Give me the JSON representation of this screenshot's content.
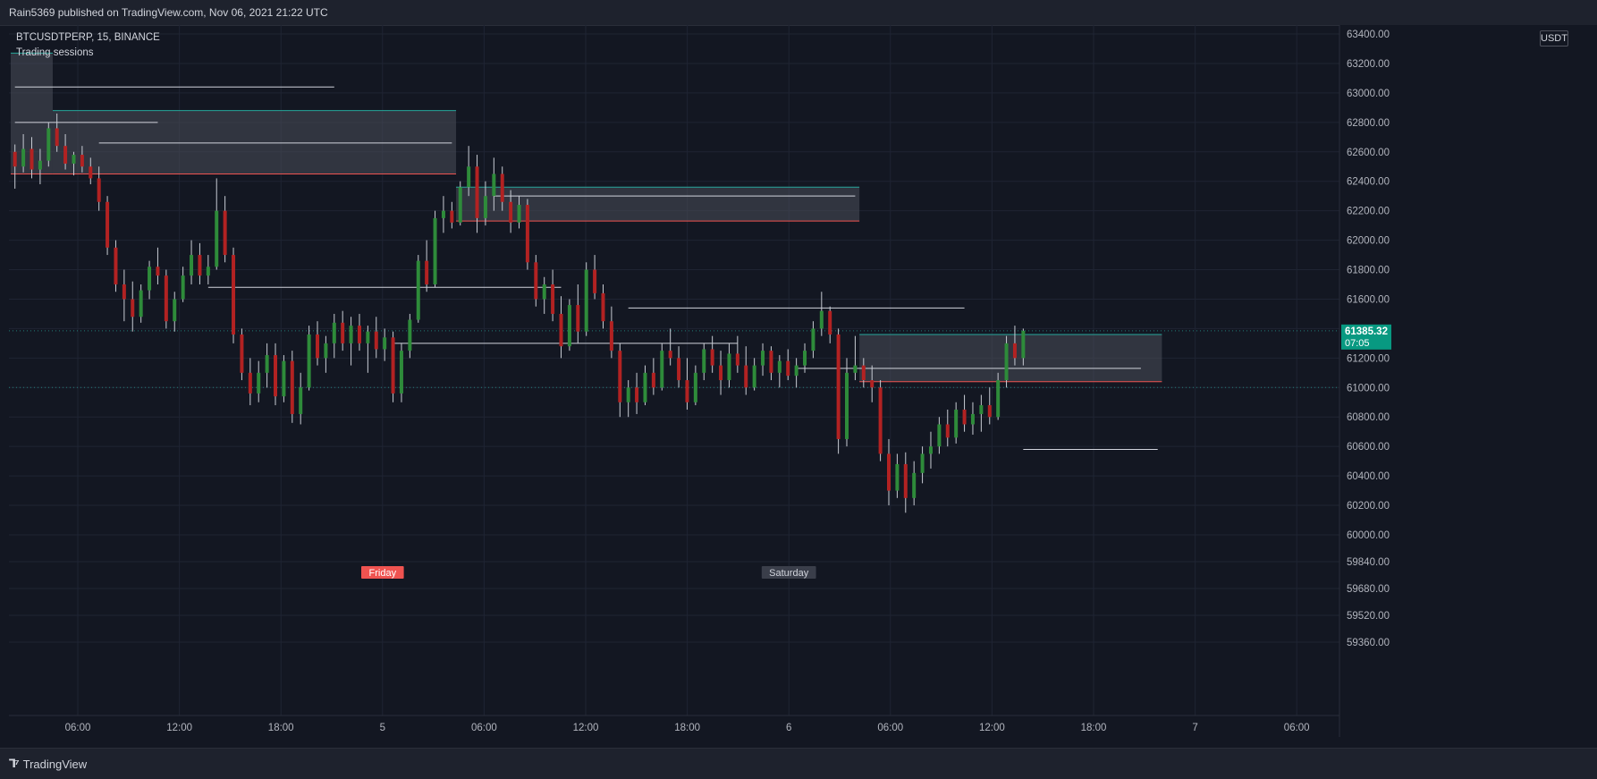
{
  "header": {
    "published_text": "Rain5369 published on TradingView.com, Nov 06, 2021 21:22 UTC"
  },
  "legend": {
    "symbol_line": "BTCUSDTPERP, 15, BINANCE",
    "indicator": "Trading sessions"
  },
  "price_axis": {
    "currency": "USDT",
    "last_price": "61385.32",
    "countdown": "07:05",
    "last_price_color": "#089981"
  },
  "footer": {
    "brand": "TradingView",
    "brand_icon": "tradingview-logo-icon"
  },
  "colors": {
    "background": "#131722",
    "up": "#26a69a",
    "down": "#ef5350",
    "session_box": "#4a4e5a",
    "session_high": "#26a69a",
    "session_low": "#ef5350",
    "level_line": "#d1d4dc"
  },
  "chart_data": {
    "type": "candlestick",
    "symbol": "BTCUSDTPERP",
    "interval": "15",
    "exchange": "BINANCE",
    "y_ticks": [
      63400,
      63200,
      63000,
      62800,
      62600,
      62400,
      62200,
      62000,
      61800,
      61600,
      61400,
      61200,
      61000,
      60800,
      60600,
      60400,
      60200,
      60000,
      59840,
      59680,
      59520,
      59360
    ],
    "y_tick_labels": [
      "63400.00",
      "63200.00",
      "63000.00",
      "62800.00",
      "62600.00",
      "62400.00",
      "62200.00",
      "62000.00",
      "61800.00",
      "61600.00",
      "61400.00",
      "61200.00",
      "61000.00",
      "60800.00",
      "60600.00",
      "60400.00",
      "60200.00",
      "60000.00",
      "59840.00",
      "59680.00",
      "59520.00",
      "59360.00"
    ],
    "x_ticks": [
      "06:00",
      "12:00",
      "18:00",
      "5",
      "06:00",
      "12:00",
      "18:00",
      "6",
      "06:00",
      "12:00",
      "18:00",
      "7",
      "06:00"
    ],
    "day_markers": [
      {
        "label": "Friday",
        "tick_index": 3,
        "color": "#ef5350"
      },
      {
        "label": "Saturday",
        "tick_index": 7,
        "color": "#d1d4dc"
      }
    ],
    "last_price": 61385.32,
    "dotted_levels": [
      61385.32,
      61000
    ],
    "session_boxes": [
      {
        "start_bar": 0,
        "end_bar": 4,
        "high": 63270,
        "low": 62450
      },
      {
        "start_bar": 5,
        "end_bar": 52,
        "high": 62880,
        "low": 62450
      },
      {
        "start_bar": 53,
        "end_bar": 100,
        "high": 62360,
        "low": 62130
      },
      {
        "start_bar": 101,
        "end_bar": 136,
        "high": 61360,
        "low": 61040
      }
    ],
    "level_lines": [
      {
        "start_bar": 0,
        "end_bar": 38,
        "price": 63040
      },
      {
        "start_bar": 0,
        "end_bar": 17,
        "price": 62800
      },
      {
        "start_bar": 10,
        "end_bar": 52,
        "price": 62660
      },
      {
        "start_bar": 23,
        "end_bar": 65,
        "price": 61680
      },
      {
        "start_bar": 45,
        "end_bar": 86,
        "price": 61300
      },
      {
        "start_bar": 57,
        "end_bar": 100,
        "price": 62300
      },
      {
        "start_bar": 73,
        "end_bar": 113,
        "price": 61540
      },
      {
        "start_bar": 93,
        "end_bar": 134,
        "price": 61130
      },
      {
        "start_bar": 120,
        "end_bar": 136,
        "price": 60580
      }
    ],
    "candles": [
      [
        62600,
        62650,
        62350,
        62500
      ],
      [
        62500,
        62720,
        62460,
        62620
      ],
      [
        62620,
        62700,
        62420,
        62480
      ],
      [
        62480,
        62620,
        62380,
        62540
      ],
      [
        62540,
        62800,
        62500,
        62760
      ],
      [
        62760,
        62860,
        62600,
        62640
      ],
      [
        62640,
        62720,
        62480,
        62520
      ],
      [
        62520,
        62600,
        62440,
        62580
      ],
      [
        62580,
        62640,
        62460,
        62500
      ],
      [
        62500,
        62560,
        62380,
        62420
      ],
      [
        62420,
        62500,
        62200,
        62260
      ],
      [
        62260,
        62300,
        61900,
        61950
      ],
      [
        61950,
        62000,
        61650,
        61700
      ],
      [
        61700,
        61800,
        61450,
        61600
      ],
      [
        61600,
        61720,
        61380,
        61480
      ],
      [
        61480,
        61700,
        61440,
        61660
      ],
      [
        61660,
        61860,
        61600,
        61820
      ],
      [
        61820,
        61950,
        61700,
        61760
      ],
      [
        61760,
        61800,
        61400,
        61450
      ],
      [
        61450,
        61650,
        61380,
        61600
      ],
      [
        61600,
        61820,
        61580,
        61760
      ],
      [
        61760,
        62000,
        61700,
        61900
      ],
      [
        61900,
        61980,
        61700,
        61760
      ],
      [
        61760,
        61900,
        61700,
        61820
      ],
      [
        61820,
        62420,
        61800,
        62200
      ],
      [
        62200,
        62300,
        61850,
        61900
      ],
      [
        61900,
        61950,
        61300,
        61360
      ],
      [
        61360,
        61400,
        61050,
        61100
      ],
      [
        61100,
        61200,
        60880,
        60960
      ],
      [
        60960,
        61180,
        60900,
        61100
      ],
      [
        61100,
        61300,
        61000,
        61220
      ],
      [
        61220,
        61300,
        60880,
        60940
      ],
      [
        60940,
        61220,
        60900,
        61180
      ],
      [
        61180,
        61250,
        60760,
        60820
      ],
      [
        60820,
        61100,
        60750,
        61000
      ],
      [
        61000,
        61420,
        60980,
        61360
      ],
      [
        61360,
        61450,
        61150,
        61200
      ],
      [
        61200,
        61350,
        61100,
        61300
      ],
      [
        61300,
        61500,
        61200,
        61440
      ],
      [
        61440,
        61520,
        61250,
        61300
      ],
      [
        61300,
        61480,
        61150,
        61420
      ],
      [
        61420,
        61500,
        61250,
        61300
      ],
      [
        61300,
        61420,
        61100,
        61380
      ],
      [
        61380,
        61480,
        61200,
        61260
      ],
      [
        61260,
        61400,
        61180,
        61340
      ],
      [
        61340,
        61380,
        60900,
        60960
      ],
      [
        60960,
        61300,
        60900,
        61250
      ],
      [
        61250,
        61500,
        61200,
        61460
      ],
      [
        61460,
        61900,
        61440,
        61860
      ],
      [
        61860,
        62000,
        61650,
        61700
      ],
      [
        61700,
        62200,
        61680,
        62150
      ],
      [
        62150,
        62300,
        62050,
        62200
      ],
      [
        62200,
        62260,
        62080,
        62120
      ],
      [
        62120,
        62400,
        62100,
        62360
      ],
      [
        62360,
        62640,
        62300,
        62500
      ],
      [
        62500,
        62580,
        62050,
        62150
      ],
      [
        62150,
        62400,
        62100,
        62300
      ],
      [
        62300,
        62560,
        62200,
        62450
      ],
      [
        62450,
        62500,
        62200,
        62260
      ],
      [
        62260,
        62340,
        62050,
        62120
      ],
      [
        62120,
        62300,
        62080,
        62240
      ],
      [
        62240,
        62280,
        61800,
        61850
      ],
      [
        61850,
        61900,
        61550,
        61600
      ],
      [
        61600,
        61750,
        61500,
        61700
      ],
      [
        61700,
        61800,
        61450,
        61500
      ],
      [
        61500,
        61620,
        61200,
        61280
      ],
      [
        61280,
        61600,
        61250,
        61560
      ],
      [
        61560,
        61700,
        61300,
        61380
      ],
      [
        61380,
        61850,
        61350,
        61800
      ],
      [
        61800,
        61900,
        61600,
        61640
      ],
      [
        61640,
        61700,
        61400,
        61450
      ],
      [
        61450,
        61550,
        61200,
        61250
      ],
      [
        61250,
        61300,
        60800,
        60900
      ],
      [
        60900,
        61050,
        60800,
        61000
      ],
      [
        61000,
        61100,
        60820,
        60900
      ],
      [
        60900,
        61150,
        60880,
        61100
      ],
      [
        61100,
        61200,
        60950,
        61000
      ],
      [
        61000,
        61300,
        60980,
        61250
      ],
      [
        61250,
        61400,
        61150,
        61200
      ],
      [
        61200,
        61280,
        61000,
        61050
      ],
      [
        61050,
        61200,
        60850,
        60900
      ],
      [
        60900,
        61150,
        60880,
        61100
      ],
      [
        61100,
        61300,
        61050,
        61260
      ],
      [
        61260,
        61350,
        61100,
        61150
      ],
      [
        61150,
        61250,
        60950,
        61050
      ],
      [
        61050,
        61300,
        61000,
        61230
      ],
      [
        61230,
        61350,
        61100,
        61150
      ],
      [
        61150,
        61280,
        60950,
        61000
      ],
      [
        61000,
        61200,
        60980,
        61150
      ],
      [
        61150,
        61300,
        61080,
        61250
      ],
      [
        61250,
        61280,
        61050,
        61100
      ],
      [
        61100,
        61220,
        61000,
        61180
      ],
      [
        61180,
        61260,
        61050,
        61080
      ],
      [
        61080,
        61200,
        61000,
        61150
      ],
      [
        61150,
        61300,
        61100,
        61250
      ],
      [
        61250,
        61450,
        61200,
        61400
      ],
      [
        61400,
        61650,
        61350,
        61520
      ],
      [
        61520,
        61550,
        61300,
        61360
      ],
      [
        61360,
        61400,
        60550,
        60650
      ],
      [
        60650,
        61200,
        60600,
        61100
      ],
      [
        61100,
        61350,
        61050,
        61150
      ],
      [
        61150,
        61200,
        61000,
        61050
      ],
      [
        61050,
        61150,
        60900,
        61000
      ],
      [
        61000,
        61050,
        60500,
        60550
      ],
      [
        60550,
        60650,
        60200,
        60300
      ],
      [
        60300,
        60550,
        60250,
        60480
      ],
      [
        60480,
        60560,
        60150,
        60250
      ],
      [
        60250,
        60500,
        60200,
        60420
      ],
      [
        60420,
        60600,
        60350,
        60550
      ],
      [
        60550,
        60700,
        60450,
        60600
      ],
      [
        60600,
        60800,
        60550,
        60750
      ],
      [
        60750,
        60850,
        60600,
        60660
      ],
      [
        60660,
        60900,
        60620,
        60850
      ],
      [
        60850,
        60950,
        60700,
        60750
      ],
      [
        60750,
        60900,
        60680,
        60820
      ],
      [
        60820,
        60950,
        60700,
        60880
      ],
      [
        60880,
        61000,
        60750,
        60800
      ],
      [
        60800,
        61100,
        60780,
        61050
      ],
      [
        61050,
        61350,
        61000,
        61300
      ],
      [
        61300,
        61420,
        61150,
        61200
      ],
      [
        61200,
        61400,
        61150,
        61385.32
      ]
    ]
  }
}
